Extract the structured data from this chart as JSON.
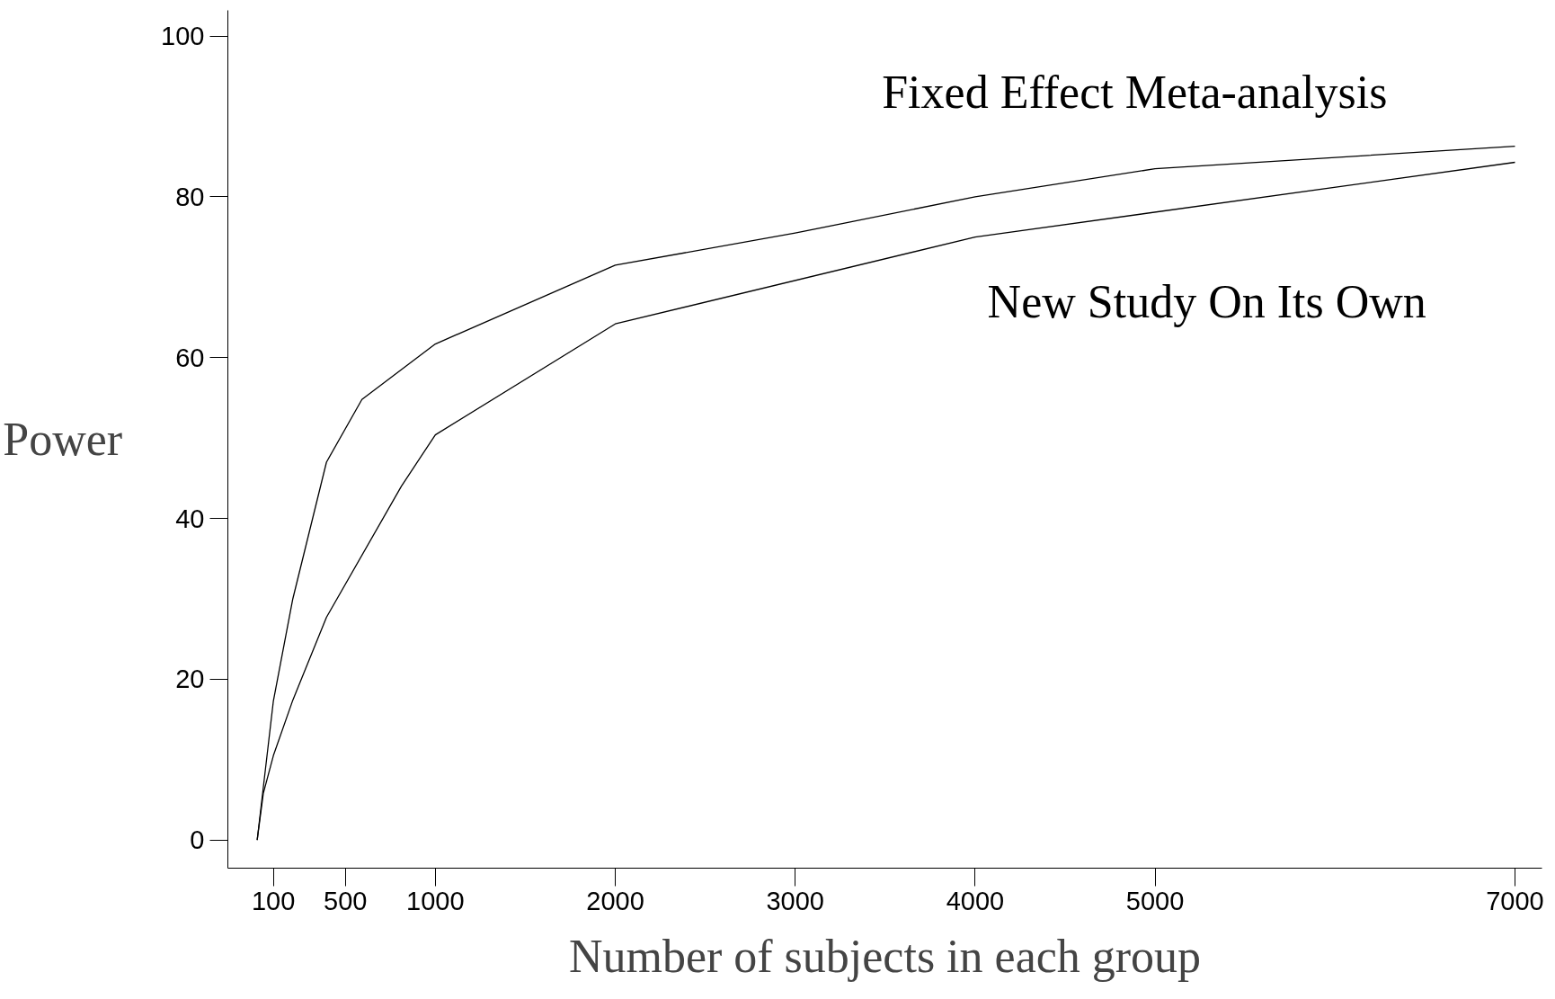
{
  "chart_data": {
    "type": "line",
    "xlabel": "Number of subjects in each group",
    "ylabel": "Power",
    "xlim": [
      -153,
      7150
    ],
    "ylim": [
      -3.5,
      103.2
    ],
    "xticks": [
      100,
      500,
      1000,
      2000,
      3000,
      4000,
      5000,
      7000
    ],
    "yticks": [
      0,
      20,
      40,
      60,
      80,
      100
    ],
    "grid": false,
    "marker": "none",
    "line_style": "solid",
    "series": [
      {
        "color": "#000000",
        "x": [
          10,
          100,
          208,
          395,
          592,
          1000,
          2000,
          3000,
          4000,
          5000,
          7000
        ],
        "values": [
          0,
          17.3,
          30,
          47,
          54.8,
          61.7,
          71.5,
          75.5,
          80,
          83.5,
          86.3
        ]
      },
      {
        "color": "#000000",
        "x": [
          10,
          44,
          100,
          208,
          395,
          811,
          1000,
          2000,
          4000,
          7000
        ],
        "values": [
          0,
          5.8,
          10.5,
          17.4,
          27.7,
          44,
          50.4,
          64.2,
          75,
          84.3
        ]
      }
    ],
    "annotations": [
      "Fixed Effect Meta-analysis",
      "New Study On Its Own"
    ]
  }
}
